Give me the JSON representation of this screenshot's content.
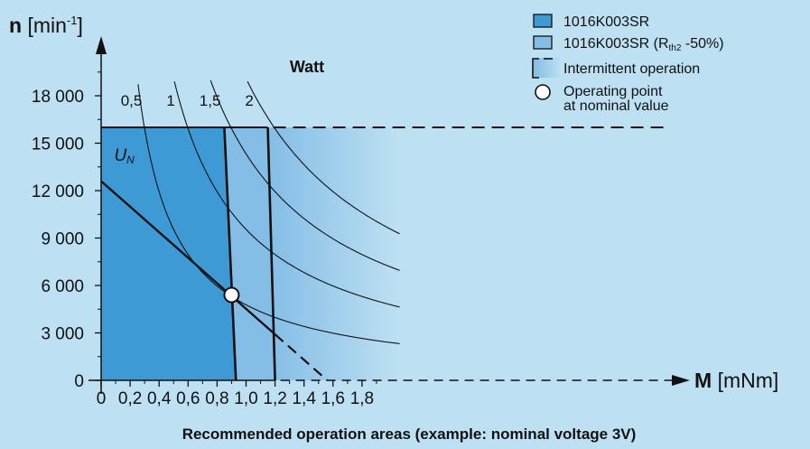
{
  "chart_data": {
    "type": "area",
    "title": "",
    "caption": "Recommended operation areas (example: nominal voltage 3V)",
    "xlabel": {
      "symbol": "M",
      "unit": "[mNm]"
    },
    "ylabel": {
      "symbol": "n",
      "unit": "[min",
      "unit_sup": "-1",
      "unit_close": "]"
    },
    "xlim": [
      0,
      2.0
    ],
    "ylim": [
      0,
      19000
    ],
    "x_ticks": [
      "0",
      "0,2",
      "0,4",
      "0,6",
      "0,8",
      "1,0",
      "1,2",
      "1,4",
      "1,6",
      "1,8"
    ],
    "x_tick_values": [
      0,
      0.2,
      0.4,
      0.6,
      0.8,
      1.0,
      1.2,
      1.4,
      1.6,
      1.8
    ],
    "y_ticks": [
      "0",
      "3 000",
      "6 000",
      "9 000",
      "12 000",
      "15 000",
      "18 000"
    ],
    "y_tick_values": [
      0,
      3000,
      6000,
      9000,
      12000,
      15000,
      18000
    ],
    "speed_limit": 16000,
    "continuous_region": {
      "name": "1016K003SR",
      "boundary_top": [
        0.85,
        16000
      ],
      "boundary_bottom": [
        0.93,
        0
      ],
      "color": "#3d9ad4"
    },
    "extended_region": {
      "name": "1016K003SR (Rth2 -50%)",
      "boundary_top": [
        1.15,
        16000
      ],
      "boundary_bottom": [
        1.2,
        0
      ],
      "color": "#84bde6"
    },
    "intermittent_region": {
      "name": "Intermittent operation"
    },
    "power_curves_title": "Watt",
    "power_curves": [
      {
        "label": "0,5",
        "watts": 0.5,
        "label_at": [
          0.59,
          17800
        ]
      },
      {
        "label": "1",
        "watts": 1.0,
        "label_at": [
          1.17,
          17800
        ]
      },
      {
        "label": "1,5",
        "watts": 1.5,
        "label_at": [
          1.74,
          17800
        ]
      },
      {
        "label": "2",
        "watts": 2.0,
        "label_at": [
          2.3,
          17800
        ]
      }
    ],
    "voltage_line": {
      "label": "U",
      "label_sub": "N",
      "points": [
        [
          0,
          12600
        ],
        [
          1.56,
          0
        ]
      ],
      "dashed_from": 1.2
    },
    "operating_point": {
      "name": "Operating point at nominal value",
      "x": 0.9,
      "y": 5400
    }
  },
  "legend": {
    "item1": "1016K003SR",
    "item2_prefix": "1016K003SR (R",
    "item2_sub": "th2",
    "item2_suffix": " -50%)",
    "item3": "Intermittent operation",
    "item4_line1": "Operating point",
    "item4_line2": "at nominal value"
  },
  "colors": {
    "background": "#bde0f2",
    "continuous": "#3d9ad4",
    "extended": "#84bde6",
    "gradient_start": "#84bde6",
    "gradient_end": "#bde0f2"
  }
}
